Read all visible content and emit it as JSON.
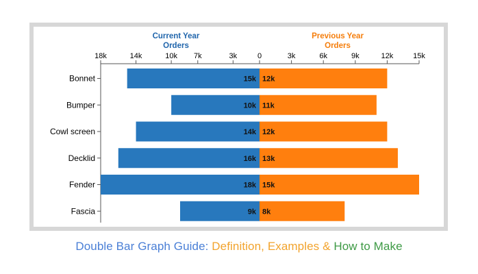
{
  "chart_data": {
    "type": "bar",
    "orientation": "horizontal-diverging",
    "categories": [
      "Bonnet",
      "Bumper",
      "Cowl screen",
      "Decklid",
      "Fender",
      "Fascia"
    ],
    "series": [
      {
        "name": "Current Year Orders",
        "side": "left",
        "color": "#2878bd",
        "values": [
          15,
          10,
          14,
          16,
          18,
          9
        ],
        "labels": [
          "15k",
          "10k",
          "14k",
          "16k",
          "18k",
          "9k"
        ]
      },
      {
        "name": "Previous Year Orders",
        "side": "right",
        "color": "#ff7f0e",
        "values": [
          12,
          11,
          12,
          13,
          15,
          8
        ],
        "labels": [
          "12k",
          "11k",
          "12k",
          "13k",
          "15k",
          "8k"
        ]
      }
    ],
    "left_axis": {
      "ticks": [
        18,
        14,
        10,
        7,
        3,
        0
      ],
      "tick_labels": [
        "18k",
        "14k",
        "10k",
        "7k",
        "3k",
        "0"
      ],
      "range": [
        0,
        18
      ]
    },
    "right_axis": {
      "ticks": [
        3,
        6,
        9,
        12,
        15
      ],
      "tick_labels": [
        "3k",
        "6k",
        "9k",
        "12k",
        "15k"
      ],
      "range": [
        0,
        15
      ]
    },
    "left_title_lines": [
      "Current Year",
      "Orders"
    ],
    "right_title_lines": [
      "Previous Year",
      "Orders"
    ],
    "left_title_color": "#2166ac",
    "right_title_color": "#f57e0c",
    "grid": false
  },
  "caption": {
    "part1": "Double Bar Graph Guide: ",
    "part2": "Definition, Examples & ",
    "part3": "How to Make",
    "color1": "#4a7fd6",
    "color2": "#f2a32c",
    "color3": "#3e9a45"
  }
}
